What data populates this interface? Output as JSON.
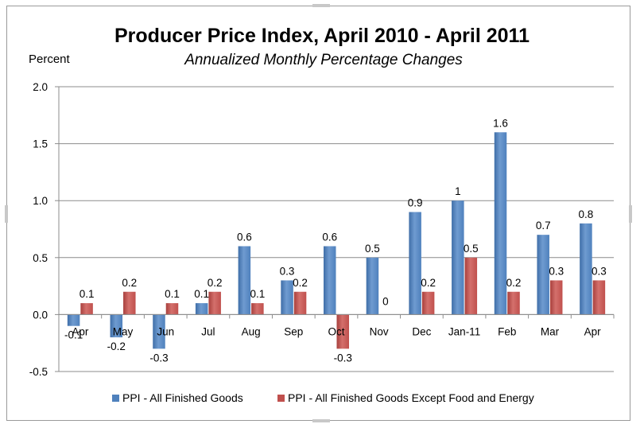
{
  "chart_data": {
    "type": "bar",
    "title": "Producer Price Index, April 2010 - April 2011",
    "subtitle": "Annualized Monthly Percentage Changes",
    "ylabel": "Percent",
    "xlabel": "",
    "ylim": [
      -0.5,
      2.0
    ],
    "yticks": [
      "-0.5",
      "0.0",
      "0.5",
      "1.0",
      "1.5",
      "2.0"
    ],
    "ytick_values": [
      -0.5,
      0.0,
      0.5,
      1.0,
      1.5,
      2.0
    ],
    "grid": true,
    "legend_position": "bottom",
    "categories": [
      "Apr",
      "May",
      "Jun",
      "Jul",
      "Aug",
      "Sep",
      "Oct",
      "Nov",
      "Dec",
      "Jan-11",
      "Feb",
      "Mar",
      "Apr"
    ],
    "series": [
      {
        "name": "PPI - All Finished Goods",
        "color": "#4f81bd",
        "values": [
          -0.1,
          -0.2,
          -0.3,
          0.1,
          0.6,
          0.3,
          0.6,
          0.5,
          0.9,
          1.0,
          1.6,
          0.7,
          0.8
        ],
        "labels": [
          "-0.1",
          "-0.2",
          "-0.3",
          "0.1",
          "0.6",
          "0.3",
          "0.6",
          "0.5",
          "0.9",
          "1",
          "1.6",
          "0.7",
          "0.8"
        ]
      },
      {
        "name": "PPI - All Finished Goods Except Food and Energy",
        "color": "#c0504d",
        "values": [
          0.1,
          0.2,
          0.1,
          0.2,
          0.1,
          0.2,
          -0.3,
          0.0,
          0.2,
          0.5,
          0.2,
          0.3,
          0.3
        ],
        "labels": [
          "0.1",
          "0.2",
          "0.1",
          "0.2",
          "0.1",
          "0.2",
          "-0.3",
          "0",
          "0.2",
          "0.5",
          "0.2",
          "0.3",
          "0.3"
        ]
      }
    ]
  }
}
